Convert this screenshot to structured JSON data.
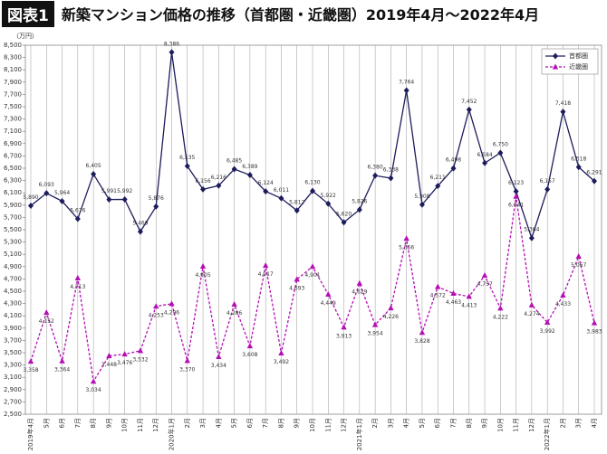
{
  "chart_data": {
    "type": "line",
    "title_badge": "図表1",
    "title": "新築マンション価格の推移（首都圏・近畿圏）2019年4月～2022年4月",
    "y_unit": "（万円）",
    "categories": [
      "2019年4月",
      "5月",
      "6月",
      "7月",
      "8月",
      "9月",
      "10月",
      "11月",
      "12月",
      "2020年1月",
      "2月",
      "3月",
      "4月",
      "5月",
      "6月",
      "7月",
      "8月",
      "9月",
      "10月",
      "11月",
      "12月",
      "2021年1月",
      "2月",
      "3月",
      "4月",
      "5月",
      "6月",
      "7月",
      "8月",
      "9月",
      "10月",
      "11月",
      "12月",
      "2022年1月",
      "2月",
      "3月",
      "4月"
    ],
    "series": [
      {
        "name": "首都圏",
        "color": "#1c1c5c",
        "marker": "diamond",
        "dashed": false,
        "values": [
          5890,
          6093,
          5964,
          5676,
          6405,
          5991,
          5992,
          5469,
          5876,
          8386,
          6535,
          6156,
          6216,
          6485,
          6389,
          6124,
          6011,
          5812,
          6130,
          5922,
          5620,
          5826,
          6380,
          6338,
          7764,
          5908,
          6211,
          6498,
          7452,
          6584,
          6750,
          6123,
          5364,
          6157,
          7418,
          6518,
          6291
        ],
        "value_labels": [
          "5,890",
          "6,093",
          "5,964",
          "5,676",
          "6,405",
          "5,991",
          "5,992",
          "5,469",
          "5,876",
          "8,386",
          "6,535",
          "6,156",
          "6,216",
          "6,485",
          "6,389",
          "6,124",
          "6,011",
          "5,812",
          "6,130",
          "5,922",
          "5,620",
          "5,826",
          "6,380",
          "6,338",
          "7,764",
          "5,908",
          "6,211",
          "6,498",
          "7,452",
          "6,584",
          "6,750",
          "6,123",
          "5,364",
          "6,157",
          "7,418",
          "6,518",
          "6,291"
        ]
      },
      {
        "name": "近畿圏",
        "color": "#b40fb4",
        "marker": "triangle",
        "dashed": true,
        "values": [
          3358,
          4152,
          3364,
          4713,
          3034,
          3448,
          3476,
          3532,
          4253,
          4296,
          3370,
          4905,
          3434,
          4286,
          3608,
          4917,
          3492,
          4693,
          4901,
          4449,
          3913,
          4629,
          3954,
          4226,
          5356,
          3828,
          4572,
          4463,
          4413,
          4757,
          4222,
          6041,
          4274,
          3992,
          4433,
          5067,
          3983
        ],
        "value_labels": [
          "3,358",
          "4,152",
          "3,364",
          "4,713",
          "3,034",
          "3,448",
          "3,476",
          "3,532",
          "4,253",
          "4,296",
          "3,370",
          "4,905",
          "3,434",
          "4,286",
          "3,608",
          "4,917",
          "3,492",
          "4,693",
          "4,901",
          "4,449",
          "3,913",
          "4,629",
          "3,954",
          "4,226",
          "5,356",
          "3,828",
          "4,572",
          "4,463",
          "4,413",
          "4,757",
          "4,222",
          "6,041",
          "4,274",
          "3,992",
          "4,433",
          "5,067",
          "3,983"
        ]
      }
    ],
    "ylim": [
      2500,
      8500
    ],
    "yticks": [
      {
        "value": 2500,
        "label": "2,500"
      },
      {
        "value": 2700,
        "label": "2,700"
      },
      {
        "value": 2900,
        "label": "2,900"
      },
      {
        "value": 3100,
        "label": "3,100"
      },
      {
        "value": 3300,
        "label": "3,300"
      },
      {
        "value": 3500,
        "label": "3,500"
      },
      {
        "value": 3700,
        "label": "3,700"
      },
      {
        "value": 3900,
        "label": "3,900"
      },
      {
        "value": 4100,
        "label": "4,100"
      },
      {
        "value": 4300,
        "label": "4,300"
      },
      {
        "value": 4500,
        "label": "4,500"
      },
      {
        "value": 4700,
        "label": "4,700"
      },
      {
        "value": 4900,
        "label": "4,900"
      },
      {
        "value": 5100,
        "label": "5,100"
      },
      {
        "value": 5300,
        "label": "5,300"
      },
      {
        "value": 5500,
        "label": "5,500"
      },
      {
        "value": 5700,
        "label": "5,700"
      },
      {
        "value": 5900,
        "label": "5,900"
      },
      {
        "value": 6100,
        "label": "6,100"
      },
      {
        "value": 6300,
        "label": "6,300"
      },
      {
        "value": 6500,
        "label": "6,500"
      },
      {
        "value": 6700,
        "label": "6,700"
      },
      {
        "value": 6900,
        "label": "6,900"
      },
      {
        "value": 7100,
        "label": "7,100"
      },
      {
        "value": 7300,
        "label": "7,300"
      },
      {
        "value": 7500,
        "label": "7,500"
      },
      {
        "value": 7700,
        "label": "7,700"
      },
      {
        "value": 7900,
        "label": "7,900"
      },
      {
        "value": 8100,
        "label": "8,100"
      },
      {
        "value": 8300,
        "label": "8,300"
      },
      {
        "value": 8500,
        "label": "8,500"
      }
    ],
    "grid": true,
    "legend": "top-right"
  }
}
